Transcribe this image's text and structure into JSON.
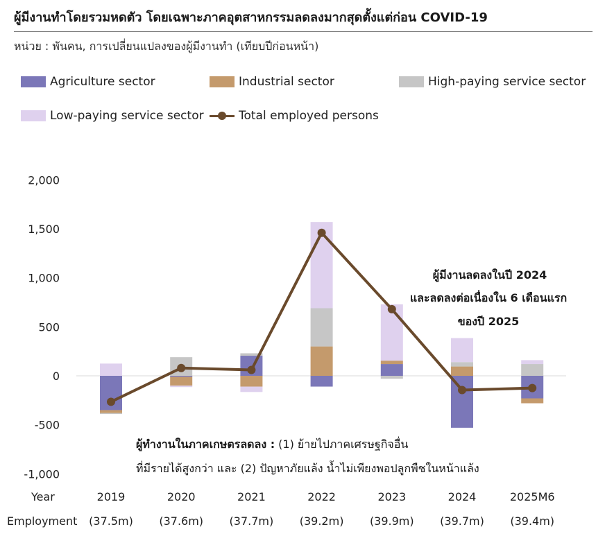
{
  "title": "ผู้มีงานทำโดยรวมหดตัว โดยเฉพาะภาคอุตสาหกรรมลดลงมากสุดตั้งแต่ก่อน COVID-19",
  "subtitle": "หน่วย : พันคน, การเปลี่ยนแปลงของผู้มีงานทำ (เทียบปีก่อนหน้า)",
  "legend": {
    "agriculture": "Agriculture sector",
    "industrial": "Industrial sector",
    "high_service": "High-paying service sector",
    "low_service": "Low-paying service sector",
    "total": "Total employed persons"
  },
  "colors": {
    "agriculture": "#7b77b8",
    "industrial": "#c49a6c",
    "high_service": "#c6c6c6",
    "low_service": "#dfd1ee",
    "total": "#6a4a2c"
  },
  "row_labels": {
    "year": "Year",
    "employment": "Employment"
  },
  "annotations": {
    "right": [
      "ผู้มีงานลดลงในปี 2024",
      "และลดลงต่อเนื่องใน 6 เดือนแรก",
      "ของปี 2025"
    ],
    "bottom_bold": "ผู้ทำงานในภาคเกษตรลดลง :",
    "bottom_rest": " (1) ย้ายไปภาคเศรษฐกิจอื่น",
    "bottom_line2": "ที่มีรายได้สูงกว่า และ (2) ปัญหาภัยแล้ง น้ำไม่เพียงพอปลูกพืชในหน้าแล้ง"
  },
  "chart_data": {
    "type": "bar",
    "stacked": true,
    "categories": [
      "2019",
      "2020",
      "2021",
      "2022",
      "2023",
      "2024",
      "2025M6"
    ],
    "employment": [
      "(37.5m)",
      "(37.6m)",
      "(37.7m)",
      "(39.2m)",
      "(39.9m)",
      "(39.7m)",
      "(39.4m)"
    ],
    "series": [
      {
        "name": "Agriculture sector",
        "key": "agriculture",
        "values": [
          -350,
          -10,
          205,
          -110,
          120,
          -530,
          -230
        ]
      },
      {
        "name": "Industrial sector",
        "key": "industrial",
        "values": [
          -30,
          -90,
          -110,
          300,
          35,
          95,
          -50
        ]
      },
      {
        "name": "High-paying service sector",
        "key": "high_service",
        "values": [
          -10,
          190,
          25,
          390,
          -30,
          45,
          120
        ]
      },
      {
        "name": "Low-paying service sector",
        "key": "low_service",
        "values": [
          125,
          -15,
          -55,
          880,
          575,
          245,
          40
        ]
      }
    ],
    "line": {
      "name": "Total employed persons",
      "values": [
        -265,
        80,
        60,
        1460,
        680,
        -145,
        -125
      ]
    },
    "ylim": [
      -1000,
      2000
    ],
    "yticks": [
      -1000,
      -500,
      0,
      500,
      1000,
      1500,
      2000
    ],
    "ytick_labels": [
      "-1,000",
      "-500",
      "0",
      "500",
      "1,000",
      "1,500",
      "2,000"
    ]
  }
}
